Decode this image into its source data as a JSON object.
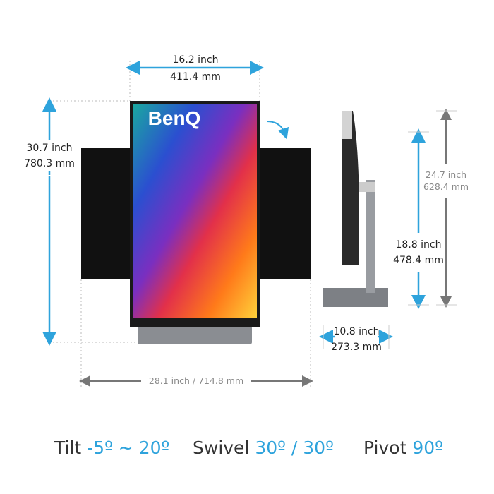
{
  "brand_logo": "BenQ",
  "colors": {
    "accent": "#2ea3dc",
    "dimension_grey": "#8a8a8a",
    "text": "#333333"
  },
  "front": {
    "width": {
      "inch": "16.2 inch",
      "mm": "411.4 mm"
    },
    "height": {
      "inch": "30.7 inch",
      "mm": "780.3 mm"
    },
    "landscape_width": "28.1 inch / 714.8 mm"
  },
  "side": {
    "max_height": {
      "inch": "24.7 inch",
      "mm": "628.4 mm"
    },
    "adjust_height": {
      "inch": "18.8 inch",
      "mm": "478.4 mm"
    },
    "depth": {
      "inch": "10.8 inch",
      "mm": "273.3 mm"
    }
  },
  "features": [
    {
      "label": "Tilt",
      "value": "-5º ~ 20º"
    },
    {
      "label": "Swivel",
      "value": "30º / 30º"
    },
    {
      "label": "Pivot",
      "value": "90º"
    }
  ]
}
